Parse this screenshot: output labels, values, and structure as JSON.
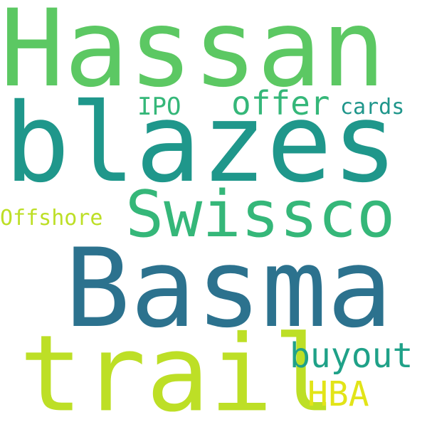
{
  "background": "#ffffff",
  "words": [
    {
      "key": "hassan",
      "text": "Hassan",
      "color": "#5cc863"
    },
    {
      "key": "blazes",
      "text": "blazes",
      "color": "#1f978b"
    },
    {
      "key": "basma",
      "text": "Basma",
      "color": "#2c728e"
    },
    {
      "key": "swissco",
      "text": "Swissco",
      "color": "#35b779"
    },
    {
      "key": "trail",
      "text": "trail",
      "color": "#bddf26"
    },
    {
      "key": "offer",
      "text": "offer",
      "color": "#35b779"
    },
    {
      "key": "buyout",
      "text": "buyout",
      "color": "#1fa188"
    },
    {
      "key": "hba",
      "text": "HBA",
      "color": "#e2e418"
    },
    {
      "key": "ipo",
      "text": "IPO",
      "color": "#35b779"
    },
    {
      "key": "cards",
      "text": "cards",
      "color": "#1f968b"
    },
    {
      "key": "offshore",
      "text": "Offshore",
      "color": "#bddf26"
    }
  ]
}
